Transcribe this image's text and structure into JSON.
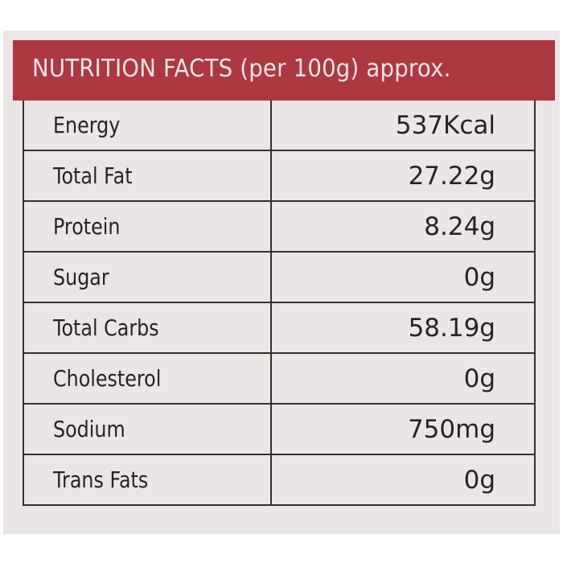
{
  "header": {
    "title": "NUTRITION FACTS (per 100g) approx."
  },
  "table": {
    "rows": [
      [
        "Energy",
        "537Kcal"
      ],
      [
        "Total Fat",
        "27.22g"
      ],
      [
        "Protein",
        "8.24g"
      ],
      [
        "Sugar",
        "0g"
      ],
      [
        "Total Carbs",
        "58.19g"
      ],
      [
        "Cholesterol",
        "0g"
      ],
      [
        "Sodium",
        "750mg"
      ],
      [
        "Trans Fats",
        "0g"
      ]
    ]
  }
}
